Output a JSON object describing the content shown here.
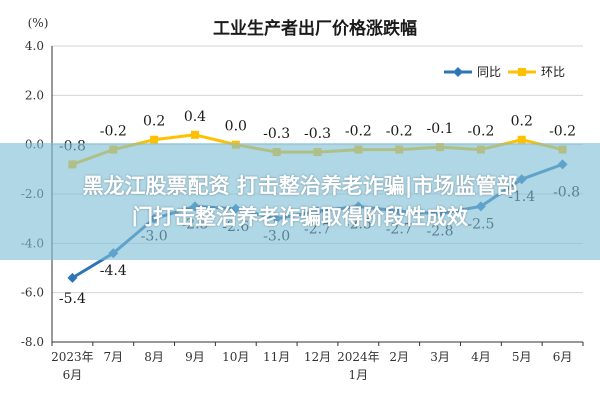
{
  "banner": {
    "line1": "黑龙江股票配资 打击整治养老诈骗|市场监管部",
    "line2": "门打击整治养老诈骗取得阶段性成效"
  },
  "chart_data": {
    "type": "line",
    "title": "工业生产者出厂价格涨跌幅",
    "ylabel": "(%)",
    "ylim": [
      -8.0,
      4.0
    ],
    "yticks": [
      "4.0",
      "2.0",
      "0.0",
      "-2.0",
      "-4.0",
      "-6.0",
      "-8.0"
    ],
    "categories": [
      "2023年6月",
      "7月",
      "8月",
      "9月",
      "10月",
      "11月",
      "12月",
      "2024年1月",
      "2月",
      "3月",
      "4月",
      "5月",
      "6月"
    ],
    "category_lines": [
      [
        "2023年",
        "6月"
      ],
      [
        "7月"
      ],
      [
        "8月"
      ],
      [
        "9月"
      ],
      [
        "10月"
      ],
      [
        "11月"
      ],
      [
        "12月"
      ],
      [
        "2024年",
        "1月"
      ],
      [
        "2月"
      ],
      [
        "3月"
      ],
      [
        "4月"
      ],
      [
        "5月"
      ],
      [
        "6月"
      ]
    ],
    "grid": true,
    "legend_position": "top-right",
    "series": [
      {
        "name": "同比",
        "color": "#2e75b6",
        "values": [
          -5.4,
          -4.4,
          -3.0,
          -2.5,
          -2.6,
          -3.0,
          -2.7,
          -2.5,
          -2.7,
          -2.8,
          -2.5,
          -1.4,
          -0.8
        ],
        "labels": [
          "-5.4",
          "-4.4",
          "-3.0",
          "-2.5",
          "-2.6",
          "-3.0",
          "-2.7",
          "-2.5",
          "-2.7",
          "-2.8",
          "-2.5",
          "-1.4",
          "-0.8"
        ]
      },
      {
        "name": "环比",
        "color": "#ffc000",
        "values": [
          -0.8,
          -0.2,
          0.2,
          0.4,
          0.0,
          -0.3,
          -0.3,
          -0.2,
          -0.2,
          -0.1,
          -0.2,
          0.2,
          -0.2
        ],
        "labels": [
          "-0.8",
          "-0.2",
          "0.2",
          "0.4",
          "0.0",
          "-0.3",
          "-0.3",
          "-0.2",
          "-0.2",
          "-0.1",
          "-0.2",
          "0.2",
          "-0.2"
        ]
      }
    ]
  }
}
